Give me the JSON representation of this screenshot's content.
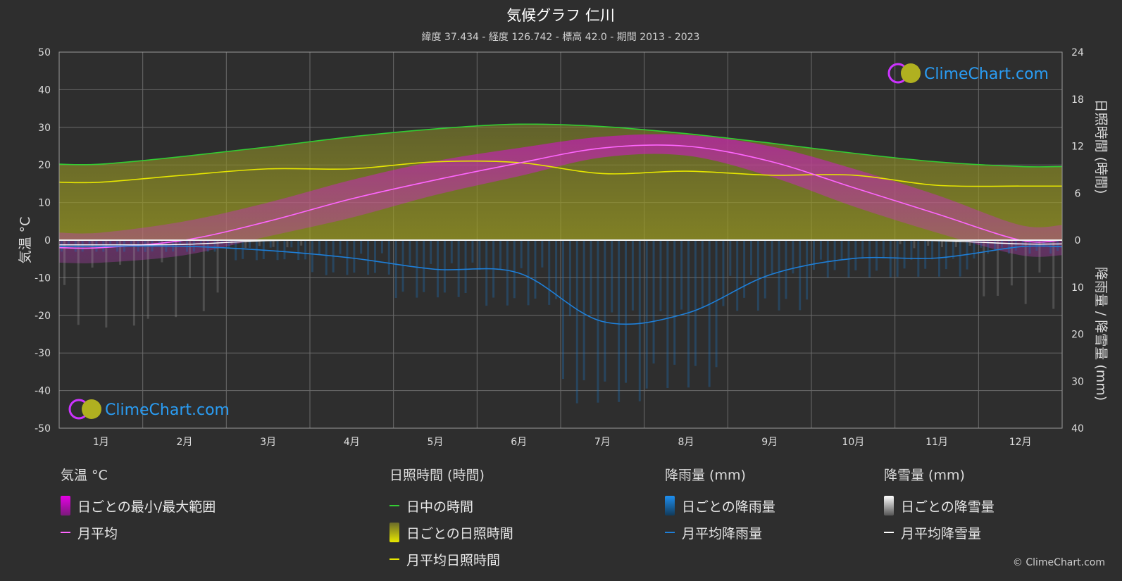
{
  "header": {
    "title": "気候グラフ 仁川",
    "subtitle": "緯度 37.434 - 経度 126.742 - 標高 42.0 - 期間 2013 - 2023"
  },
  "watermark": "ClimeChart.com",
  "copyright": "© ClimeChart.com",
  "colors": {
    "background": "#2e2e2e",
    "daylight": "#33cc33",
    "sunshine": "#e6e600",
    "temp_range": "#e600e6",
    "temp_avg": "#ff66ff",
    "rain": "#1e7fd8",
    "snow": "#ffffff"
  },
  "chart_data": {
    "type": "line",
    "x": [
      "1月",
      "2月",
      "3月",
      "4月",
      "5月",
      "6月",
      "7月",
      "8月",
      "9月",
      "10月",
      "11月",
      "12月"
    ],
    "y_left": {
      "label": "気温 °C",
      "ylim": [
        -50,
        50
      ],
      "ticks": [
        "50",
        "40",
        "30",
        "20",
        "10",
        "0",
        "-10",
        "-20",
        "-30",
        "-40",
        "-50"
      ]
    },
    "y_right_top": {
      "label": "日照時間 (時間)",
      "ylim": [
        0,
        24
      ],
      "ticks": [
        "24",
        "18",
        "12",
        "6",
        "0"
      ]
    },
    "y_right_bottom": {
      "label": "降雨量 / 降雪量 (mm)",
      "ylim": [
        0,
        40
      ],
      "ticks": [
        "10",
        "20",
        "30",
        "40"
      ]
    },
    "grid": true,
    "series": [
      {
        "name": "日中の時間",
        "axis": "sunshine_hours",
        "values": [
          9.7,
          10.7,
          11.9,
          13.2,
          14.2,
          14.8,
          14.5,
          13.6,
          12.4,
          11.1,
          10.0,
          9.4
        ]
      },
      {
        "name": "月平均日照時間",
        "axis": "sunshine_hours",
        "values": [
          7.4,
          8.3,
          9.1,
          9.1,
          10.0,
          9.9,
          8.5,
          8.8,
          8.3,
          8.3,
          7.0,
          6.9
        ]
      },
      {
        "name": "月平均",
        "axis": "temperature",
        "values": [
          -2.0,
          0.0,
          5.0,
          11.0,
          16.0,
          20.5,
          24.5,
          25.0,
          21.0,
          14.0,
          7.0,
          0.0
        ]
      },
      {
        "name": "日ごとの最小/最大範囲",
        "axis": "temperature",
        "min": [
          -6.0,
          -4.0,
          1.0,
          6.0,
          12.0,
          17.0,
          22.0,
          22.5,
          17.0,
          9.0,
          2.0,
          -4.0
        ],
        "max": [
          2.0,
          5.0,
          10.0,
          16.0,
          21.0,
          24.5,
          27.5,
          28.0,
          25.0,
          19.0,
          12.0,
          4.0
        ]
      },
      {
        "name": "月平均降雨量",
        "axis": "precipitation_mm",
        "values": [
          1.3,
          1.3,
          2.2,
          3.8,
          6.2,
          7.0,
          17.3,
          15.6,
          7.4,
          3.9,
          3.8,
          1.4
        ]
      },
      {
        "name": "月平均降雪量",
        "axis": "precipitation_mm",
        "values": [
          1.0,
          0.9,
          0.1,
          0,
          0,
          0,
          0,
          0,
          0,
          0,
          0.1,
          0.8
        ]
      }
    ]
  },
  "legend": {
    "temp": {
      "heading": "気温 °C",
      "range_label": "日ごとの最小/最大範囲",
      "avg_label": "月平均"
    },
    "sun": {
      "heading": "日照時間 (時間)",
      "daylight_label": "日中の時間",
      "daily_label": "日ごとの日照時間",
      "avg_label": "月平均日照時間"
    },
    "rain": {
      "heading": "降雨量 (mm)",
      "daily_label": "日ごとの降雨量",
      "avg_label": "月平均降雨量"
    },
    "snow": {
      "heading": "降雪量 (mm)",
      "daily_label": "日ごとの降雪量",
      "avg_label": "月平均降雪量"
    }
  }
}
